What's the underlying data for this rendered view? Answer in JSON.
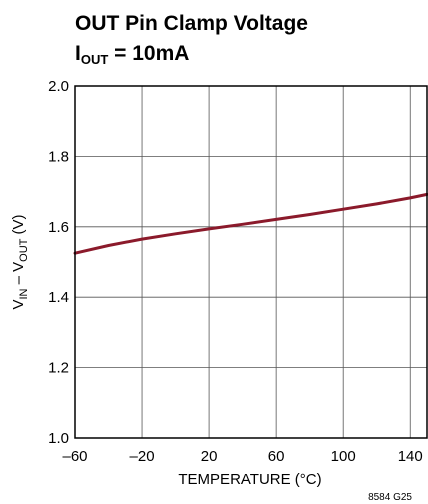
{
  "chart_data": {
    "type": "line",
    "title": "OUT Pin Clamp Voltage",
    "subtitle": {
      "prefix": "I",
      "subscript": "OUT",
      "suffix": " = 10mA"
    },
    "xlabel": "TEMPERATURE (°C)",
    "ylabel": {
      "v1": "V",
      "s1": "IN",
      "mid": " – V",
      "s2": "OUT",
      "end": " (V)"
    },
    "xlim": [
      -60,
      150
    ],
    "ylim": [
      1.0,
      2.0
    ],
    "x_ticks": [
      -60,
      -20,
      20,
      60,
      100,
      140
    ],
    "x_tick_labels": [
      "–60",
      "–20",
      "20",
      "60",
      "100",
      "140"
    ],
    "y_ticks": [
      1.0,
      1.2,
      1.4,
      1.6,
      1.8,
      2.0
    ],
    "y_tick_labels": [
      "1.0",
      "1.2",
      "1.4",
      "1.6",
      "1.8",
      "2.0"
    ],
    "grid": true,
    "series": [
      {
        "color": "#8b1a2b",
        "x": [
          -60,
          -40,
          -20,
          0,
          20,
          40,
          60,
          80,
          100,
          120,
          140,
          150
        ],
        "y": [
          1.525,
          1.547,
          1.565,
          1.58,
          1.594,
          1.607,
          1.621,
          1.635,
          1.65,
          1.665,
          1.682,
          1.692
        ]
      }
    ],
    "footnote": "8584 G25"
  }
}
